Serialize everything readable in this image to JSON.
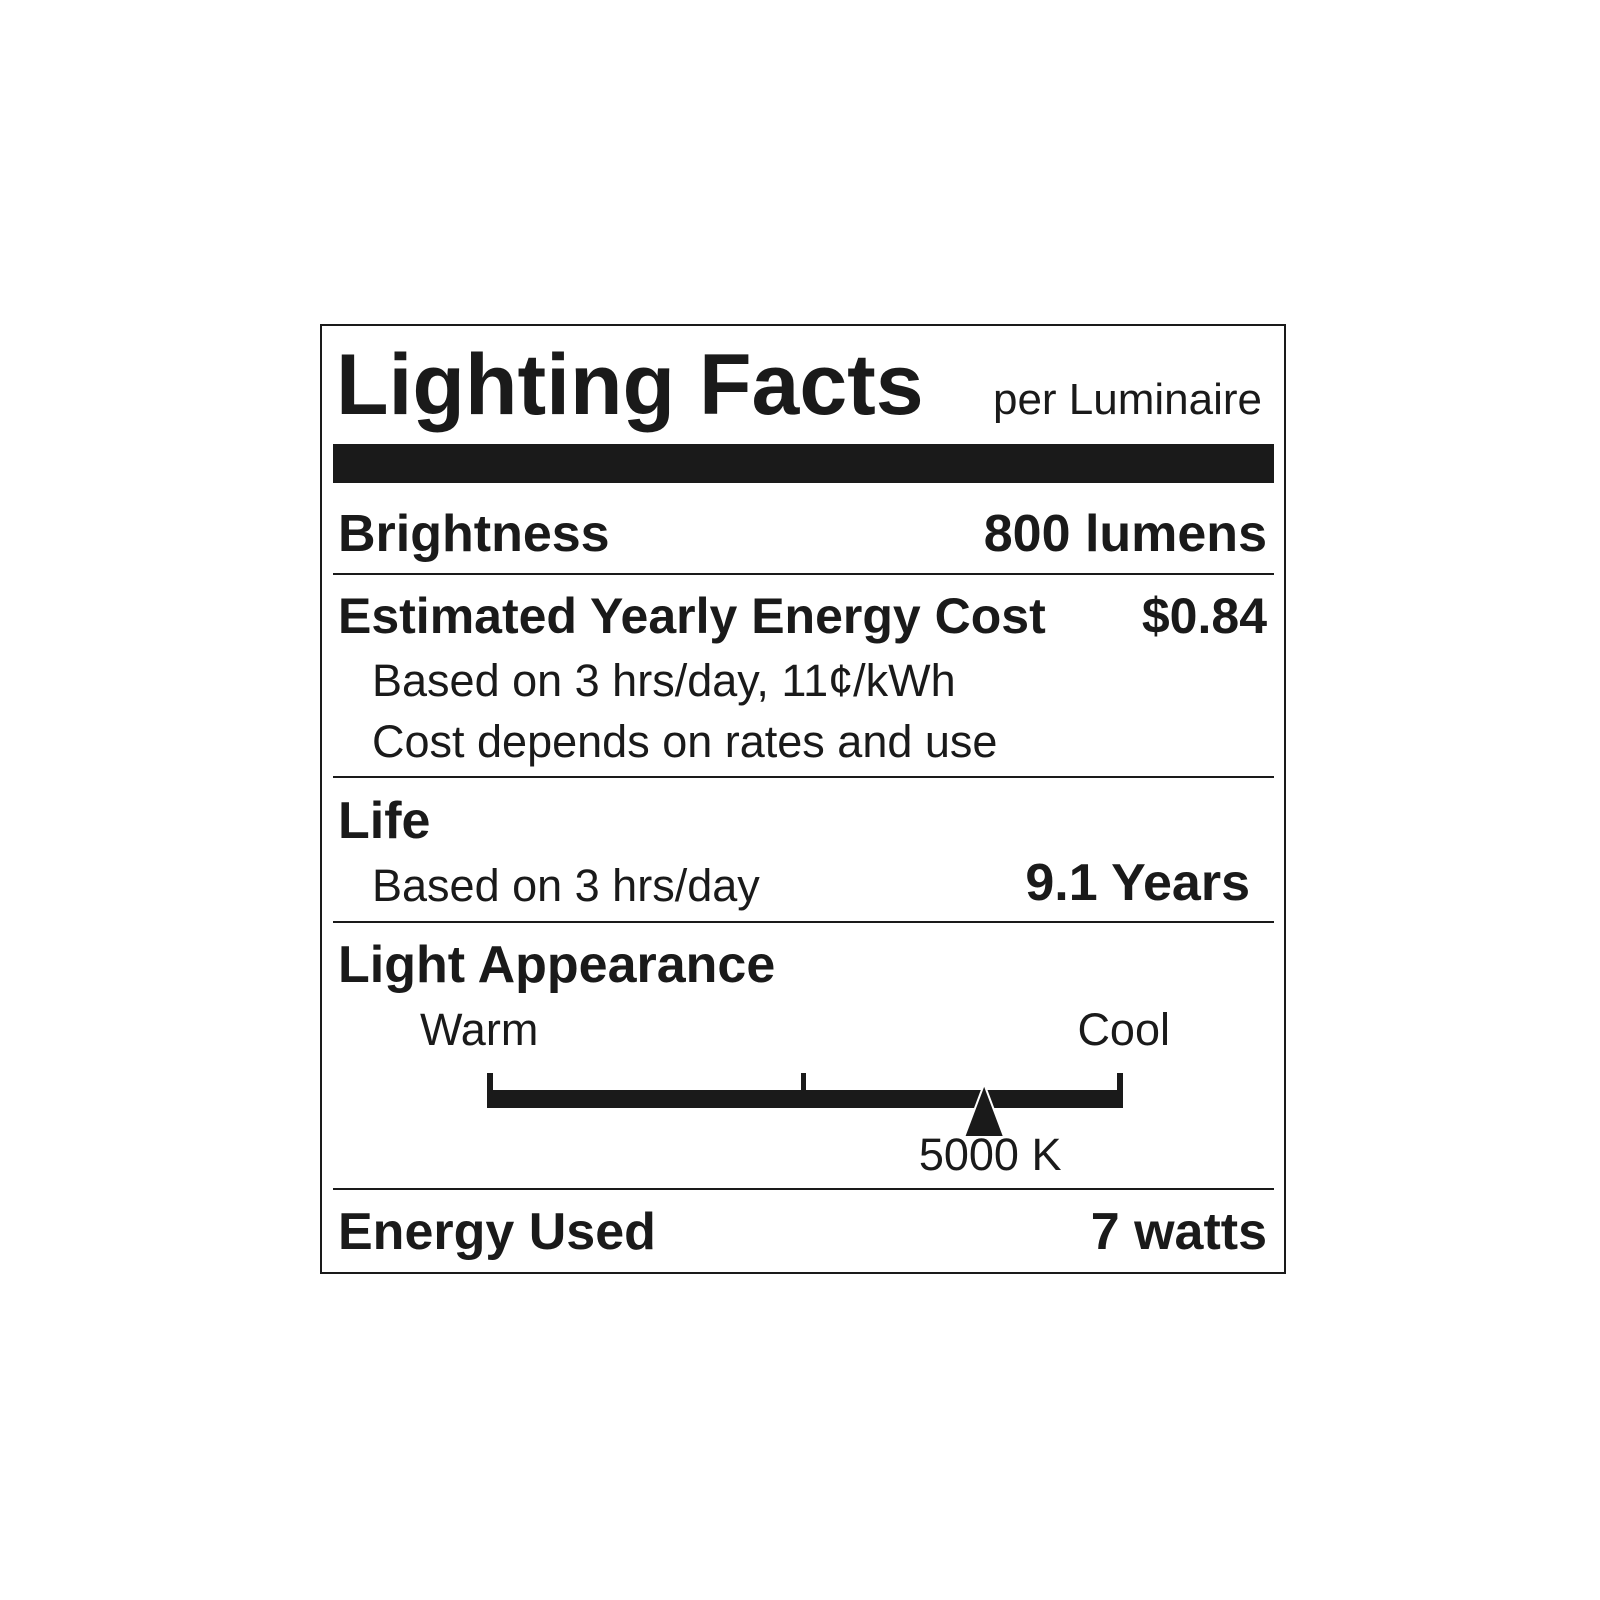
{
  "title": "Lighting Facts",
  "subtitle": "per Luminaire",
  "brightness": {
    "label": "Brightness",
    "value": "800 lumens"
  },
  "energy_cost": {
    "label": "Estimated Yearly Energy Cost",
    "value": "$0.84",
    "note1": "Based on 3 hrs/day, 11¢/kWh",
    "note2": "Cost depends on rates and use"
  },
  "life": {
    "label": "Life",
    "note": "Based on 3 hrs/day",
    "value": "9.1 Years"
  },
  "light_appearance": {
    "label": "Light Appearance",
    "warm_label": "Warm",
    "cool_label": "Cool",
    "value": "5000 K",
    "scale_min_k": 2700,
    "scale_mid_k": 3000,
    "scale_max_k": 6500
  },
  "energy_used": {
    "label": "Energy Used",
    "value": "7 watts"
  },
  "colors": {
    "ink": "#1a1a1a",
    "background": "#ffffff"
  }
}
